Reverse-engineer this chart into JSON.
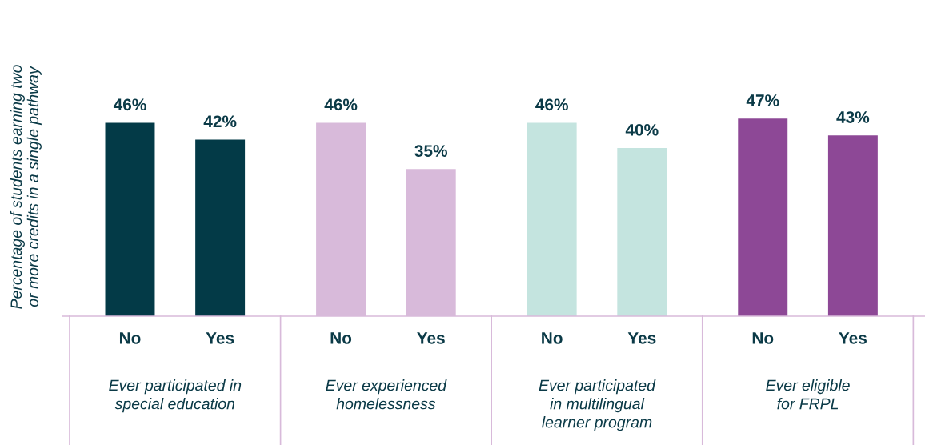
{
  "chart_data": {
    "type": "bar",
    "ylabel": "Percentage of students earning two\nor more credits in a single pathway",
    "categories": [
      "No",
      "Yes",
      "No",
      "Yes",
      "No",
      "Yes",
      "No",
      "Yes"
    ],
    "values": [
      46,
      42,
      46,
      35,
      46,
      40,
      47,
      43
    ],
    "colors": [
      "#033a47",
      "#033a47",
      "#d8bada",
      "#d8bada",
      "#c4e4df",
      "#c4e4df",
      "#8d4896",
      "#8d4896"
    ],
    "value_labels": [
      "46%",
      "42%",
      "46%",
      "35%",
      "46%",
      "40%",
      "47%",
      "43%"
    ],
    "annotations": [
      "Ever participated in\nspecial education",
      "Ever experienced\nhomelessness",
      "Ever participated\nin multilingual\nlearner program",
      "Ever eligible\nfor FRPL"
    ],
    "grid": false,
    "legend": false
  }
}
